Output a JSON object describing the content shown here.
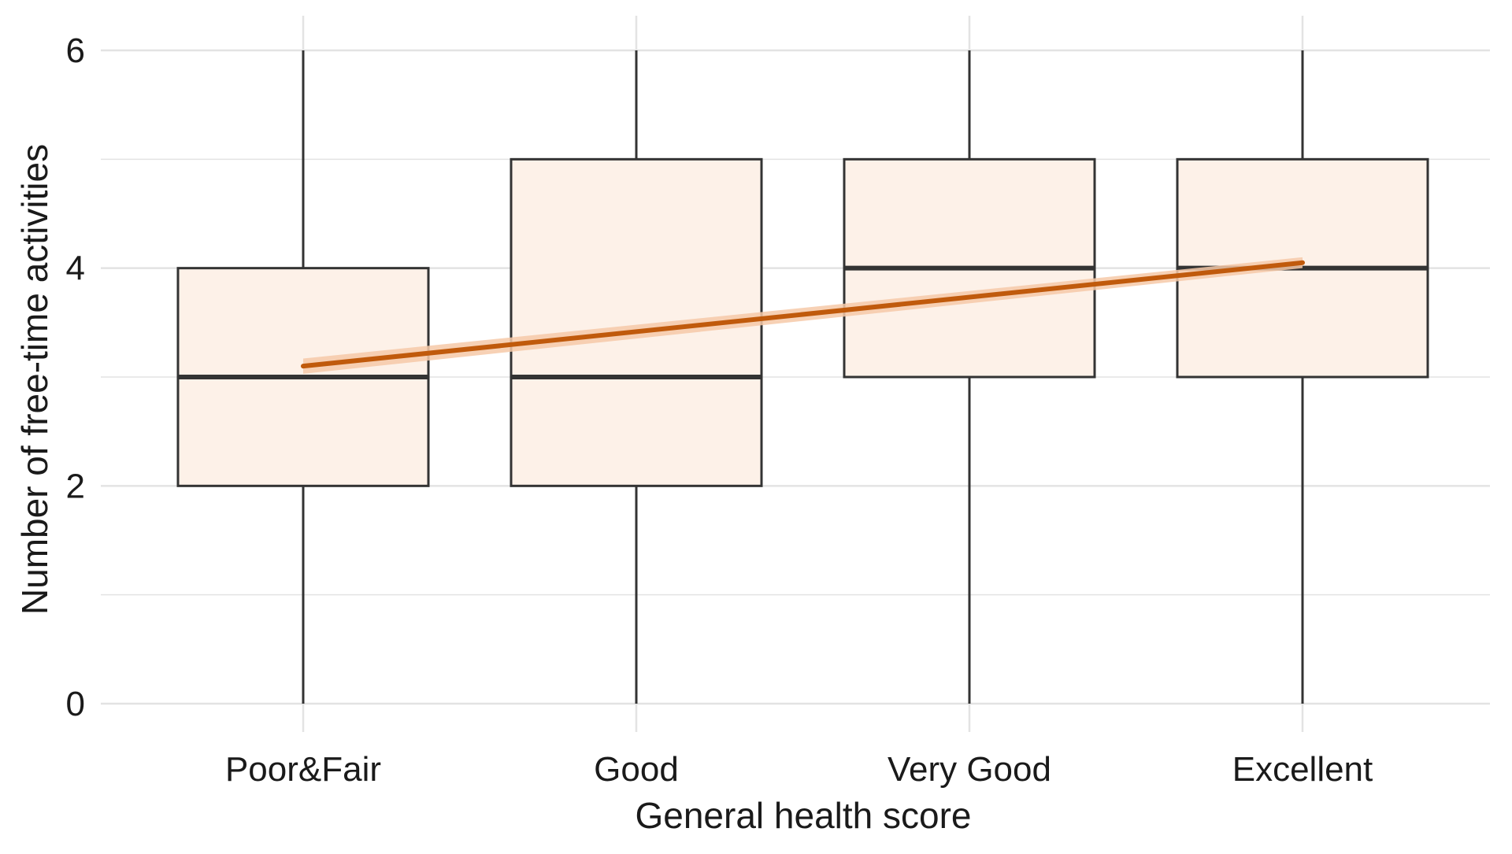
{
  "chart_data": {
    "type": "box",
    "xlabel": "General health score",
    "ylabel": "Number of free-time activities",
    "categories": [
      "Poor&Fair",
      "Good",
      "Very Good",
      "Excellent"
    ],
    "boxes": [
      {
        "category": "Poor&Fair",
        "min": 0,
        "q1": 2,
        "median": 3,
        "q3": 4,
        "max": 6
      },
      {
        "category": "Good",
        "min": 0,
        "q1": 2,
        "median": 3,
        "q3": 5,
        "max": 6
      },
      {
        "category": "Very Good",
        "min": 0,
        "q1": 3,
        "median": 4,
        "q3": 5,
        "max": 6
      },
      {
        "category": "Excellent",
        "min": 0,
        "q1": 3,
        "median": 4,
        "q3": 5,
        "max": 6
      }
    ],
    "trend_line": {
      "start": {
        "category": "Poor&Fair",
        "y": 3.1
      },
      "end": {
        "category": "Excellent",
        "y": 4.05
      },
      "ci_halfwidth_start": 0.07,
      "ci_halfwidth_end": 0.05
    },
    "yticks": [
      0,
      2,
      4,
      6
    ],
    "ylim": [
      -0.3,
      6.3
    ],
    "grid": true,
    "colors": {
      "box_fill": "#fdf1e8",
      "box_stroke": "#333333",
      "median": "#333333",
      "trend": "#c05a0c",
      "ci_band": "#f6c9a8",
      "grid": "#e3e3e3"
    }
  }
}
